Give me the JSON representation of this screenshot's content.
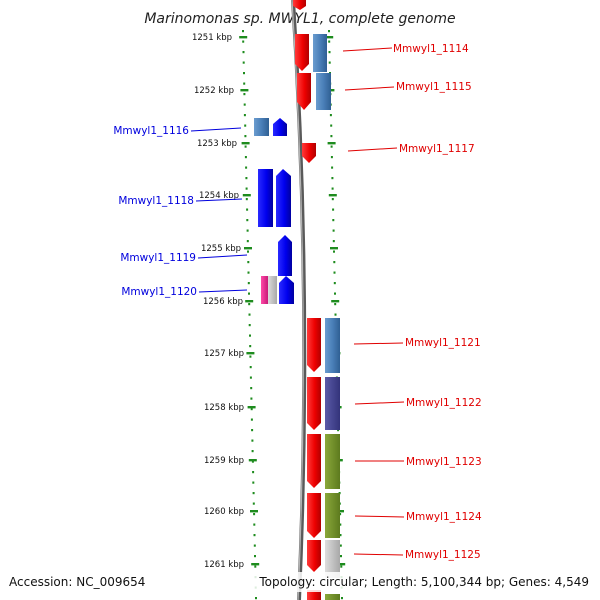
{
  "title": "Marinomonas sp. MWYL1, complete genome",
  "footer": {
    "accession": "Accession: NC_009654",
    "topology": "Topology: circular; Length: 5,100,344 bp; Genes: 4,549"
  },
  "ticks": [
    "1251 kbp",
    "1252 kbp",
    "1253 kbp",
    "1254 kbp",
    "1255 kbp",
    "1256 kbp",
    "1257 kbp",
    "1258 kbp",
    "1259 kbp",
    "1260 kbp",
    "1261 kbp"
  ],
  "genes": [
    {
      "label": "Mmwyl1_1114",
      "strand": "right",
      "color": "#e00000"
    },
    {
      "label": "Mmwyl1_1115",
      "strand": "right",
      "color": "#e00000"
    },
    {
      "label": "Mmwyl1_1116",
      "strand": "left",
      "color": "#0000dd"
    },
    {
      "label": "Mmwyl1_1117",
      "strand": "right",
      "color": "#e00000"
    },
    {
      "label": "Mmwyl1_1118",
      "strand": "left",
      "color": "#0000dd"
    },
    {
      "label": "Mmwyl1_1119",
      "strand": "left",
      "color": "#0000dd"
    },
    {
      "label": "Mmwyl1_1120",
      "strand": "left",
      "color": "#0000dd"
    },
    {
      "label": "Mmwyl1_1121",
      "strand": "right",
      "color": "#e00000"
    },
    {
      "label": "Mmwyl1_1122",
      "strand": "right",
      "color": "#e00000"
    },
    {
      "label": "Mmwyl1_1123",
      "strand": "right",
      "color": "#e00000"
    },
    {
      "label": "Mmwyl1_1124",
      "strand": "right",
      "color": "#e00000"
    },
    {
      "label": "Mmwyl1_1125",
      "strand": "right",
      "color": "#e00000"
    }
  ]
}
